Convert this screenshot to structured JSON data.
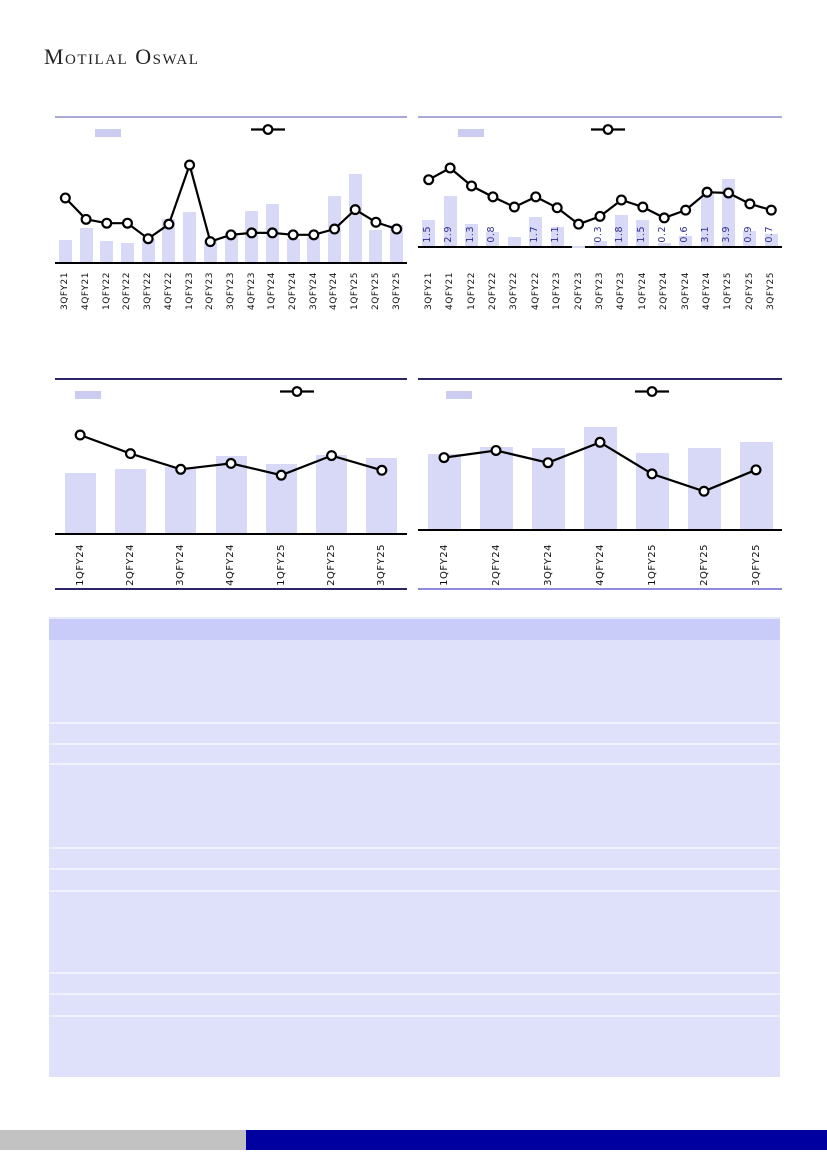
{
  "logo": {
    "text": "Motilal Oswal"
  },
  "colors": {
    "bar_fill": "#d8d9f6",
    "line": "#000000",
    "marker_fill": "#ffffff",
    "data_label": "#2f2f8f",
    "top_chart_border": "#a9a9d8",
    "bottom_chart_border_dark": "#2a2668",
    "bottom_chart_border_light": "#8f8cdb",
    "table_header_bg": "#c9ccf8",
    "table_body_bg": "#dfe1fb",
    "footer_gray": "#c2c2c2",
    "footer_blue": "#0000a0"
  },
  "chart_data": [
    {
      "position": "top-left",
      "type": "bar+line",
      "title": "",
      "xlabel": "",
      "ylabel": "",
      "legend": {
        "bar_label": "",
        "line_label": "",
        "position": "top"
      },
      "categories": [
        "3QFY21",
        "4QFY21",
        "1QFY22",
        "2QFY22",
        "3QFY22",
        "4QFY22",
        "1QFY23",
        "2QFY23",
        "3QFY23",
        "4QFY23",
        "1QFY24",
        "2QFY24",
        "3QFY24",
        "4QFY24",
        "1QFY25",
        "2QFY25",
        "3QFY25"
      ],
      "series": [
        {
          "name": "bar-series",
          "type": "bar",
          "value_scale": "relative-estimate-0-100",
          "values": [
            23,
            35,
            22,
            20,
            24,
            44,
            52,
            23,
            30,
            53,
            60,
            24,
            26,
            68,
            91,
            33,
            38
          ]
        },
        {
          "name": "line-series",
          "type": "line",
          "value_scale": "relative-estimate-0-100",
          "values": [
            66,
            44,
            40,
            40,
            24,
            39,
            100,
            21,
            28,
            30,
            30,
            28,
            28,
            34,
            54,
            41,
            34
          ]
        }
      ]
    },
    {
      "position": "top-right",
      "type": "bar+line",
      "title": "",
      "xlabel": "",
      "ylabel": "",
      "legend": {
        "bar_label": "",
        "line_label": "",
        "position": "top"
      },
      "categories": [
        "3QFY21",
        "4QFY21",
        "1QFY22",
        "2QFY22",
        "3QFY22",
        "4QFY22",
        "1QFY23",
        "2QFY23",
        "3QFY23",
        "4QFY23",
        "1QFY24",
        "2QFY24",
        "3QFY24",
        "4QFY24",
        "1QFY25",
        "2QFY25",
        "3QFY25"
      ],
      "series": [
        {
          "name": "bar-series",
          "type": "bar",
          "value_scale": "as-labeled",
          "values": [
            1.5,
            2.9,
            1.3,
            0.8,
            0.5,
            1.7,
            1.1,
            -0.1,
            0.3,
            1.8,
            1.5,
            0.2,
            0.6,
            3.1,
            3.9,
            0.9,
            0.7
          ]
        },
        {
          "name": "line-series",
          "type": "line",
          "value_scale": "relative-estimate-0-100",
          "values": [
            85,
            100,
            77,
            63,
            50,
            63,
            49,
            28,
            38,
            59,
            50,
            36,
            46,
            69,
            68,
            54,
            46
          ]
        }
      ],
      "bar_labels_shown": [
        "1.5",
        "2.9",
        "1.3",
        "0.8",
        "",
        "1.7",
        "1.1",
        "",
        "0.3",
        "1.8",
        "1.5",
        "0.2",
        "0.6",
        "3.1",
        "3.9",
        "0.9",
        "0.7"
      ]
    },
    {
      "position": "bottom-left",
      "type": "bar+line",
      "title": "",
      "xlabel": "",
      "ylabel": "",
      "legend": {
        "bar_label": "",
        "line_label": "",
        "position": "top"
      },
      "categories": [
        "1QFY24",
        "2QFY24",
        "3QFY24",
        "4QFY24",
        "1QFY25",
        "2QFY25",
        "3QFY25"
      ],
      "series": [
        {
          "name": "bar-series",
          "type": "bar",
          "value_scale": "relative-estimate-0-100",
          "values": [
            61,
            65,
            67,
            79,
            70,
            80,
            77
          ]
        },
        {
          "name": "line-series",
          "type": "line",
          "value_scale": "relative-estimate-0-100",
          "values": [
            100,
            81,
            65,
            71,
            59,
            79,
            64
          ]
        }
      ]
    },
    {
      "position": "bottom-right",
      "type": "bar+line",
      "title": "",
      "xlabel": "",
      "ylabel": "",
      "legend": {
        "bar_label": "",
        "line_label": "",
        "position": "top"
      },
      "categories": [
        "1QFY24",
        "2QFY24",
        "3QFY24",
        "4QFY24",
        "1QFY25",
        "2QFY25",
        "3QFY25"
      ],
      "series": [
        {
          "name": "bar-series",
          "type": "bar",
          "value_scale": "relative-estimate-0-100",
          "values": [
            74,
            80,
            79,
            100,
            75,
            79,
            85
          ]
        },
        {
          "name": "line-series",
          "type": "line",
          "value_scale": "relative-estimate-0-100",
          "values": [
            70,
            77,
            65,
            85,
            54,
            37,
            58
          ]
        }
      ]
    }
  ],
  "table": {
    "header_label": "",
    "visible_text": ""
  },
  "footer": {
    "text": ""
  }
}
